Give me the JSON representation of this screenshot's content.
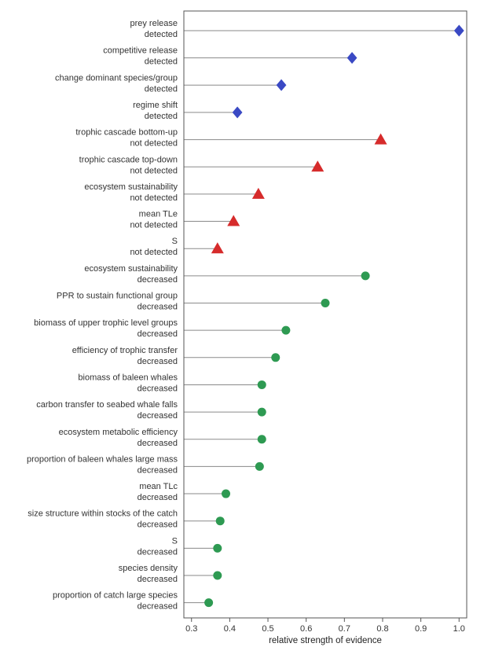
{
  "chart_data": {
    "type": "lollipop",
    "xlabel": "relative strength of evidence",
    "ylabel": "",
    "xlim": [
      0.28,
      1.02
    ],
    "xticks": [
      "0.3",
      "0.4",
      "0.5",
      "0.6",
      "0.7",
      "0.8",
      "0.9",
      "1.0"
    ],
    "xtick_values": [
      0.3,
      0.4,
      0.5,
      0.6,
      0.7,
      0.8,
      0.9,
      1.0
    ],
    "grid": false,
    "marker_colors": {
      "diamond": "#3a49c4",
      "triangle": "#d62b2b",
      "circle": "#2e9a52"
    },
    "categories": [
      {
        "line1": "prey release",
        "line2": "detected",
        "value": 1.0,
        "marker": "diamond"
      },
      {
        "line1": "competitive release",
        "line2": "detected",
        "value": 0.72,
        "marker": "diamond"
      },
      {
        "line1": "change dominant species/group",
        "line2": "detected",
        "value": 0.535,
        "marker": "diamond"
      },
      {
        "line1": "regime shift",
        "line2": "detected",
        "value": 0.42,
        "marker": "diamond"
      },
      {
        "line1": "trophic cascade bottom-up",
        "line2": "not detected",
        "value": 0.795,
        "marker": "triangle"
      },
      {
        "line1": "trophic cascade top-down",
        "line2": "not detected",
        "value": 0.63,
        "marker": "triangle"
      },
      {
        "line1": "ecosystem sustainability",
        "line2": "not detected",
        "value": 0.475,
        "marker": "triangle"
      },
      {
        "line1": "mean TLe",
        "line2": "not detected",
        "value": 0.41,
        "marker": "triangle"
      },
      {
        "line1": "S",
        "line2": "not detected",
        "value": 0.368,
        "marker": "triangle"
      },
      {
        "line1": "ecosystem sustainability",
        "line2": "decreased",
        "value": 0.755,
        "marker": "circle"
      },
      {
        "line1": "PPR to sustain functional group",
        "line2": "decreased",
        "value": 0.65,
        "marker": "circle"
      },
      {
        "line1": "biomass of upper trophic level groups",
        "line2": "decreased",
        "value": 0.547,
        "marker": "circle"
      },
      {
        "line1": "efficiency of trophic transfer",
        "line2": "decreased",
        "value": 0.52,
        "marker": "circle"
      },
      {
        "line1": "biomass of baleen whales",
        "line2": "decreased",
        "value": 0.484,
        "marker": "circle"
      },
      {
        "line1": "carbon transfer to seabed whale falls",
        "line2": "decreased",
        "value": 0.484,
        "marker": "circle"
      },
      {
        "line1": "ecosystem metabolic efficiency",
        "line2": "decreased",
        "value": 0.484,
        "marker": "circle"
      },
      {
        "line1": "proportion of baleen whales large mass",
        "line2": "decreased",
        "value": 0.478,
        "marker": "circle"
      },
      {
        "line1": "mean TLc",
        "line2": "decreased",
        "value": 0.39,
        "marker": "circle"
      },
      {
        "line1": "size structure within stocks of the catch",
        "line2": "decreased",
        "value": 0.375,
        "marker": "circle"
      },
      {
        "line1": "S",
        "line2": "decreased",
        "value": 0.368,
        "marker": "circle"
      },
      {
        "line1": "species density",
        "line2": "decreased",
        "value": 0.368,
        "marker": "circle"
      },
      {
        "line1": "proportion of catch large species",
        "line2": "decreased",
        "value": 0.345,
        "marker": "circle"
      }
    ]
  }
}
